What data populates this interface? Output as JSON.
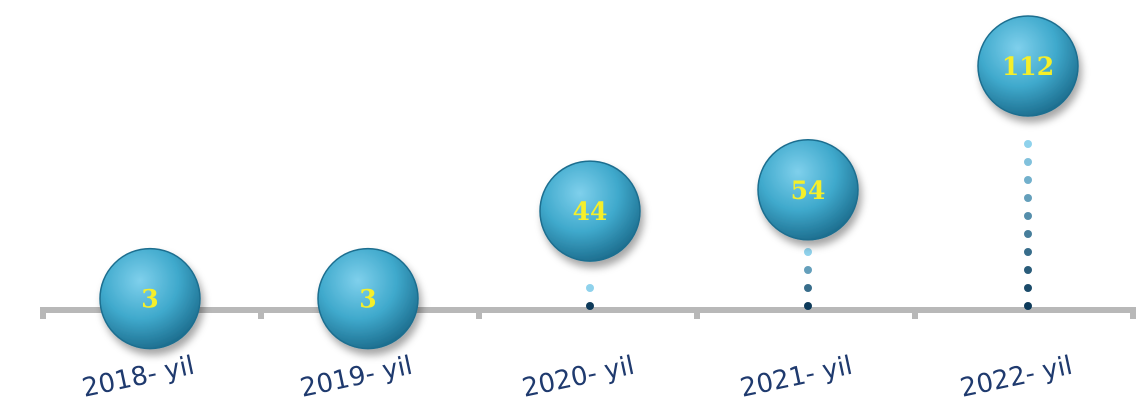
{
  "chart_data": {
    "type": "scatter",
    "categories": [
      "2018- yil",
      "2019- yil",
      "2020- yil",
      "2021- yil",
      "2022- yil"
    ],
    "values": [
      3,
      3,
      44,
      54,
      112
    ],
    "value_labels": [
      "3",
      "3",
      "44",
      "54",
      "112"
    ],
    "title": "",
    "xlabel": "",
    "ylabel": "",
    "ylim": [
      0,
      112
    ],
    "grid": false,
    "legend": "none"
  },
  "colors": {
    "bubble": "#3fa9cc",
    "bubble_dark": "#1d6e8f",
    "value_text": "#f5ef2a",
    "year_text": "#1f3a6e",
    "axis": "#b8b8b8",
    "dot_light": "#8fd2ec",
    "dot_dark": "#0d3a5a"
  }
}
